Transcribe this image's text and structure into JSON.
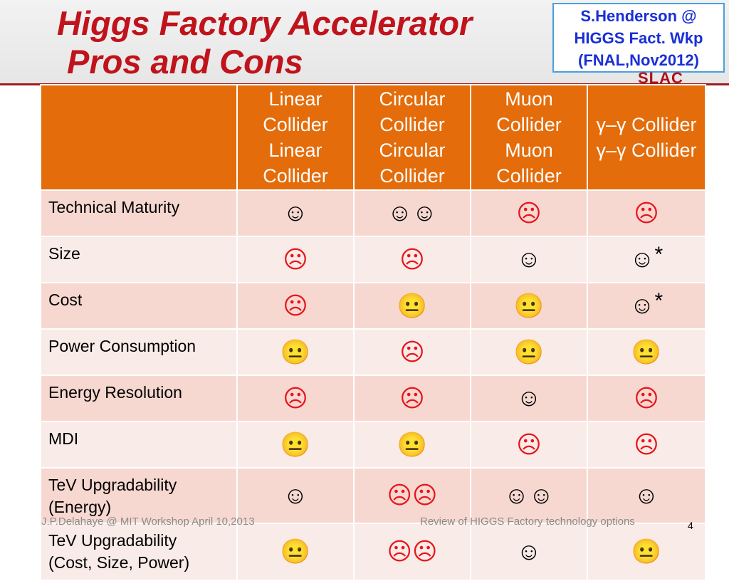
{
  "slide": {
    "title_line1": "Higgs Factory Accelerator",
    "title_line2": "Pros and Cons",
    "credit_lines": [
      "S.Henderson @",
      "HIGGS Fact. Wkp",
      "(FNAL,Nov2012)"
    ],
    "logo_text": "SLAC",
    "footer_left": "J.P.Delahaye @ MIT Workshop April 10,2013",
    "footer_right": "Review of HIGGS Factory technology options",
    "page_number": "4"
  },
  "table": {
    "headers": [
      "",
      "Linear\nCollider",
      "Circular\nCollider",
      "Muon\nCollider",
      "γ–γ\nCollider"
    ],
    "rows": [
      {
        "label": "Technical Maturity",
        "cells": [
          [
            "good"
          ],
          [
            "good",
            "good"
          ],
          [
            "bad"
          ],
          [
            "bad"
          ]
        ]
      },
      {
        "label": "Size",
        "cells": [
          [
            "bad"
          ],
          [
            "bad"
          ],
          [
            "good"
          ],
          [
            "good",
            "*"
          ]
        ]
      },
      {
        "label": "Cost",
        "cells": [
          [
            "bad"
          ],
          [
            "neutral"
          ],
          [
            "neutral"
          ],
          [
            "good",
            "*"
          ]
        ]
      },
      {
        "label": "Power Consumption",
        "cells": [
          [
            "neutral"
          ],
          [
            "bad"
          ],
          [
            "neutral"
          ],
          [
            "neutral"
          ]
        ]
      },
      {
        "label": "Energy Resolution",
        "cells": [
          [
            "bad"
          ],
          [
            "bad"
          ],
          [
            "good"
          ],
          [
            "bad"
          ]
        ]
      },
      {
        "label": "MDI",
        "cells": [
          [
            "neutral"
          ],
          [
            "neutral"
          ],
          [
            "bad"
          ],
          [
            "bad"
          ]
        ]
      },
      {
        "label": "TeV Upgradability\n(Energy)",
        "cells": [
          [
            "good"
          ],
          [
            "bad",
            "bad"
          ],
          [
            "good",
            "good"
          ],
          [
            "good"
          ]
        ]
      },
      {
        "label": "TeV Upgradability\n(Cost, Size, Power)",
        "cells": [
          [
            "neutral"
          ],
          [
            "bad",
            "bad"
          ],
          [
            "good"
          ],
          [
            "neutral"
          ]
        ]
      }
    ]
  },
  "face_glyphs": {
    "good": "☺",
    "bad": "☹",
    "neutral": "😐"
  },
  "colors": {
    "header_orange": "#e46c0a",
    "title_red": "#c0131b",
    "bad_face_red": "#e8141b",
    "credit_blue": "#1a2fd6"
  }
}
